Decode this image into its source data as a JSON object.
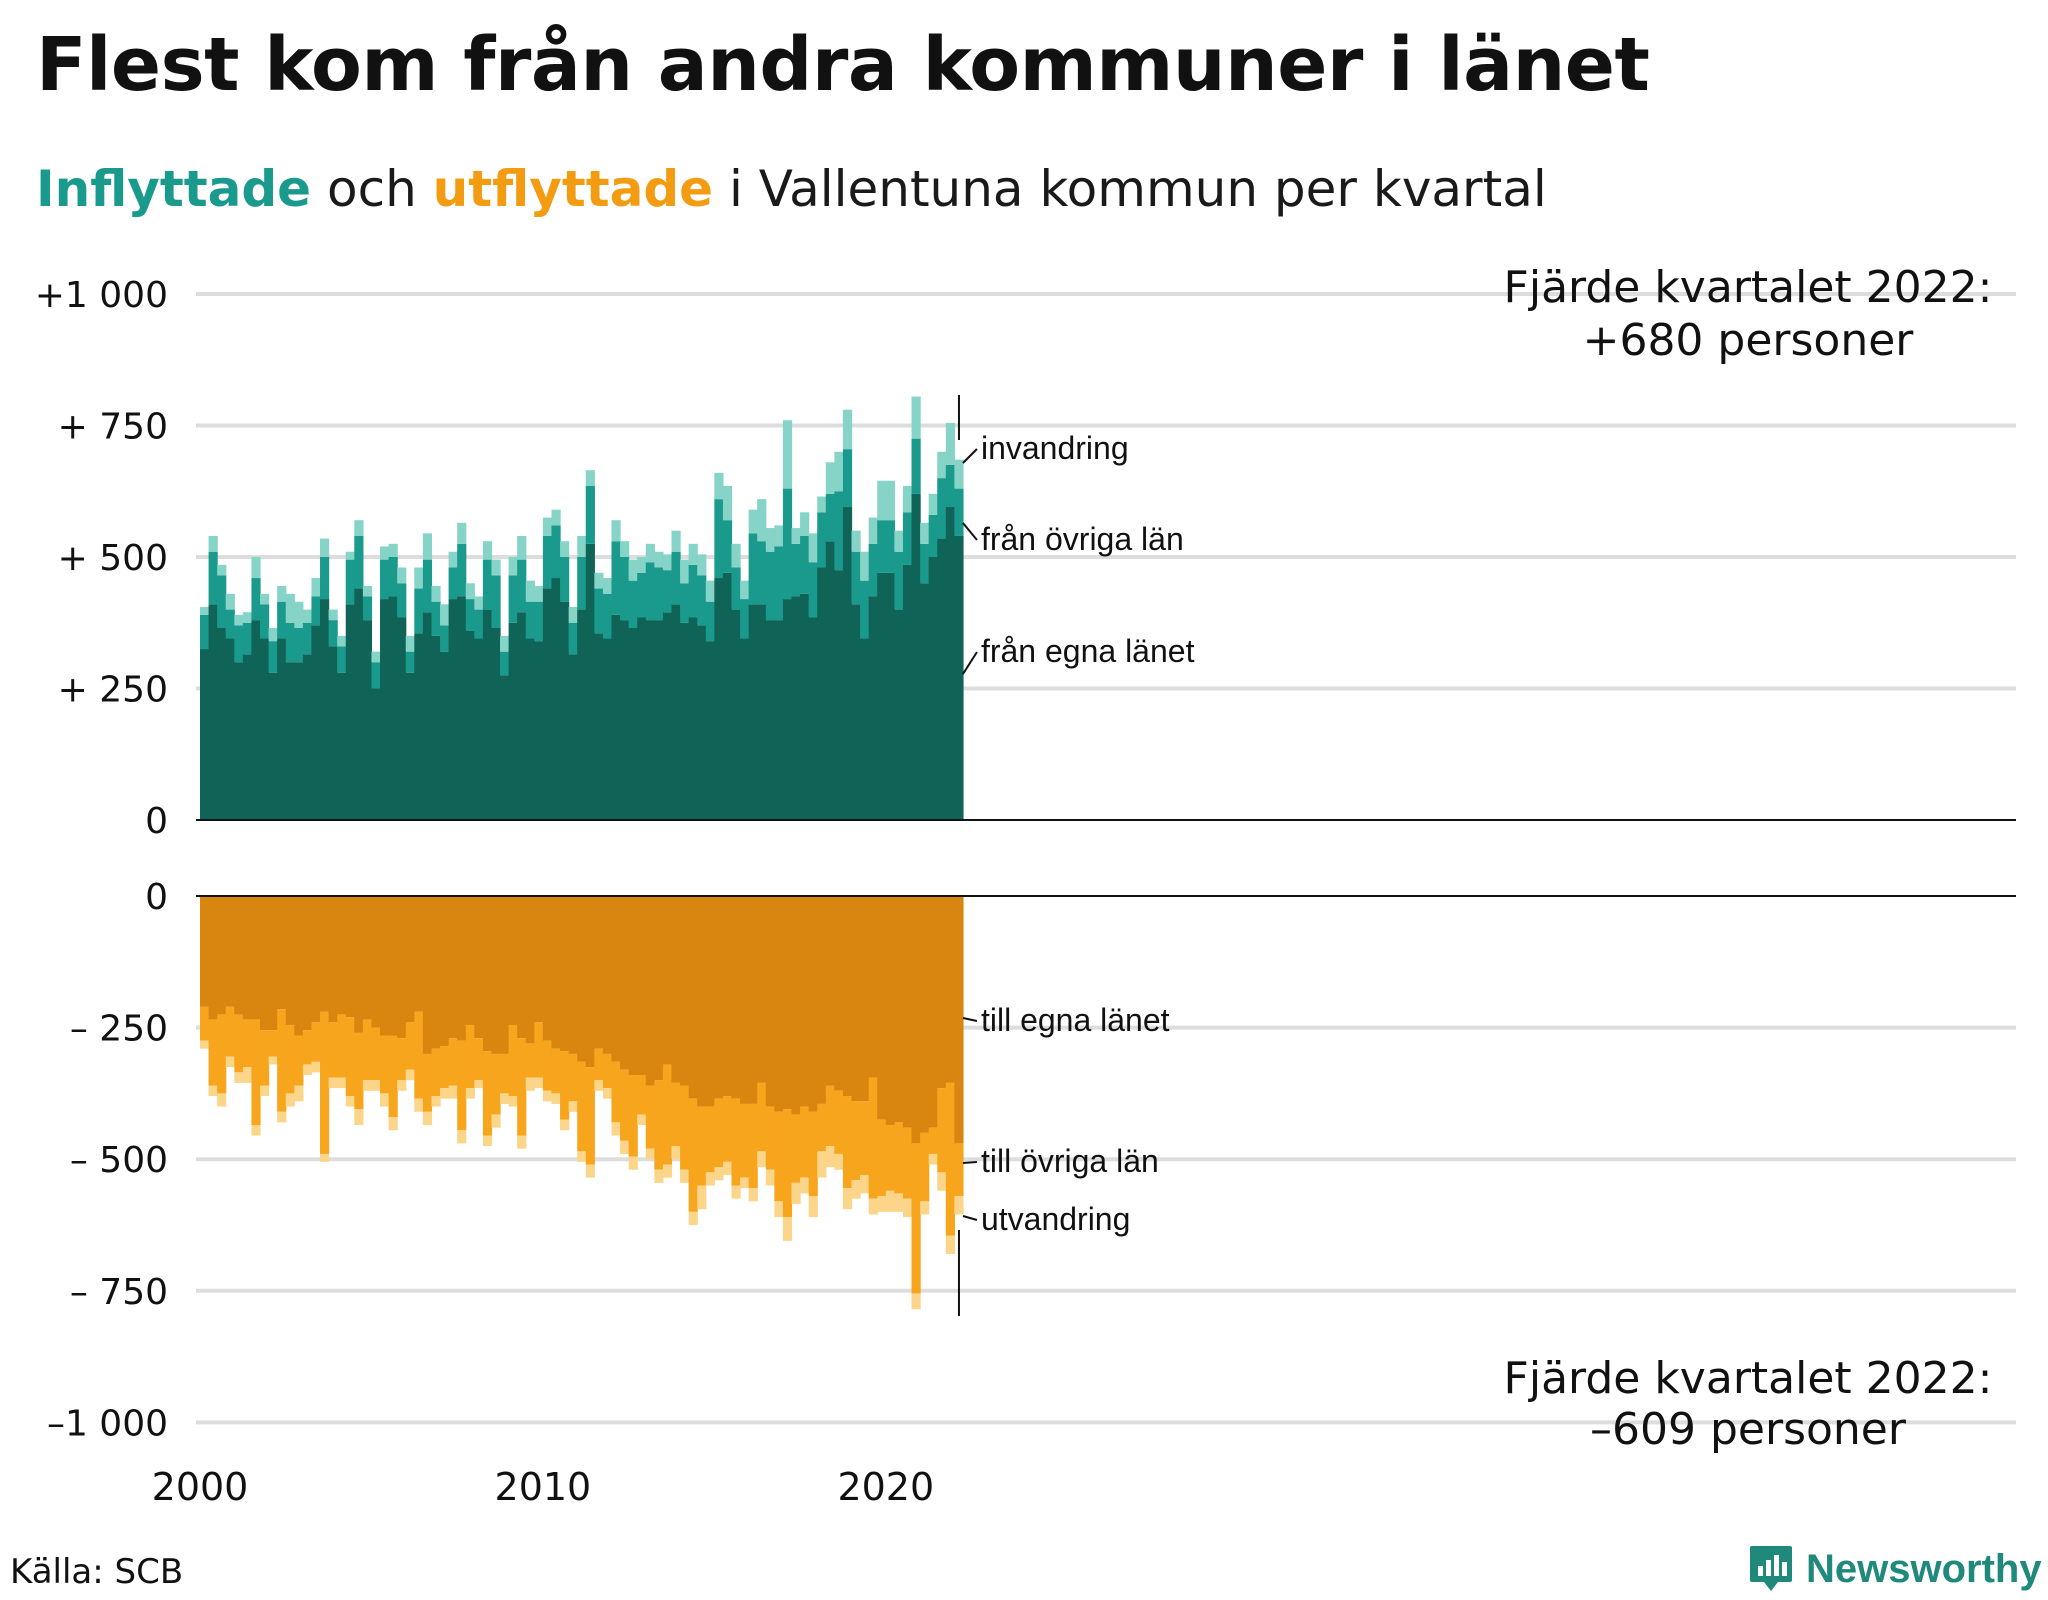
{
  "title": "Flest kom från andra kommuner i länet",
  "subtitle": {
    "word_in": "Inflyttade",
    "middle": " och ",
    "word_out": "utflyttade",
    "rest": " i Vallentuna kommun per kvartal"
  },
  "source": "Källa: SCB",
  "brand": "Newsworthy",
  "colors": {
    "in_own": "#0f6357",
    "in_other": "#1a9a8c",
    "in_immig": "#86d3c7",
    "out_own": "#d8860f",
    "out_other": "#f7a51d",
    "out_emig": "#fbd589",
    "grid": "#dddddd",
    "axis": "#111111"
  },
  "chart_data": {
    "type": "bar",
    "stacked": true,
    "x_unit": "kvartal",
    "x_start": "2000 Q1",
    "x_ticks": [
      "2000",
      "2010",
      "2020"
    ],
    "y_ticks_top": [
      "+1 000",
      "+  750",
      "+  500",
      "+  250",
      "0"
    ],
    "y_ticks_bottom": [
      "0",
      "–  250",
      "–  500",
      "–  750",
      "–1 000"
    ],
    "ylim_top": [
      0,
      1000
    ],
    "ylim_bottom": [
      -1000,
      0
    ],
    "grid": true,
    "series_in": [
      {
        "name": "från egna länet",
        "values": [
          325,
          410,
          365,
          345,
          300,
          315,
          380,
          345,
          280,
          345,
          300,
          300,
          315,
          370,
          420,
          330,
          280,
          410,
          440,
          380,
          250,
          420,
          425,
          385,
          280,
          355,
          395,
          350,
          320,
          420,
          425,
          360,
          345,
          400,
          365,
          275,
          375,
          395,
          345,
          340,
          440,
          460,
          415,
          315,
          400,
          525,
          355,
          345,
          390,
          380,
          365,
          385,
          380,
          380,
          395,
          410,
          375,
          385,
          370,
          340,
          460,
          470,
          400,
          345,
          410,
          410,
          380,
          380,
          420,
          425,
          430,
          385,
          480,
          530,
          475,
          595,
          410,
          345,
          425,
          470,
          470,
          400,
          485,
          620,
          450,
          500,
          535,
          595,
          540
        ]
      },
      {
        "name": "från övriga län",
        "values": [
          65,
          100,
          100,
          55,
          70,
          60,
          80,
          65,
          60,
          70,
          75,
          65,
          60,
          55,
          80,
          50,
          50,
          85,
          100,
          45,
          50,
          75,
          75,
          65,
          40,
          85,
          100,
          65,
          50,
          60,
          100,
          60,
          55,
          95,
          100,
          45,
          90,
          100,
          70,
          75,
          100,
          100,
          85,
          60,
          100,
          110,
          85,
          85,
          140,
          120,
          90,
          85,
          110,
          100,
          80,
          100,
          75,
          100,
          95,
          75,
          150,
          100,
          80,
          75,
          135,
          120,
          130,
          140,
          210,
          100,
          110,
          105,
          105,
          90,
          150,
          110,
          100,
          110,
          100,
          100,
          100,
          110,
          100,
          105,
          75,
          80,
          115,
          80,
          90
        ]
      },
      {
        "name": "invandring",
        "values": [
          15,
          30,
          20,
          30,
          20,
          20,
          40,
          20,
          25,
          30,
          55,
          50,
          25,
          35,
          35,
          20,
          20,
          15,
          30,
          20,
          20,
          25,
          25,
          30,
          30,
          40,
          50,
          30,
          40,
          30,
          40,
          30,
          25,
          35,
          30,
          30,
          35,
          45,
          40,
          30,
          35,
          30,
          30,
          30,
          40,
          30,
          30,
          30,
          40,
          30,
          40,
          30,
          35,
          30,
          30,
          40,
          45,
          40,
          40,
          40,
          50,
          65,
          45,
          35,
          45,
          80,
          45,
          40,
          130,
          30,
          45,
          55,
          30,
          60,
          75,
          75,
          40,
          55,
          50,
          75,
          75,
          40,
          50,
          80,
          40,
          40,
          50,
          80,
          55
        ]
      }
    ],
    "series_out": [
      {
        "name": "till egna länet",
        "values": [
          -210,
          -235,
          -225,
          -210,
          -225,
          -235,
          -235,
          -255,
          -255,
          -215,
          -245,
          -265,
          -255,
          -240,
          -220,
          -240,
          -225,
          -230,
          -260,
          -235,
          -250,
          -265,
          -265,
          -270,
          -240,
          -220,
          -300,
          -290,
          -285,
          -270,
          -275,
          -245,
          -270,
          -295,
          -300,
          -300,
          -245,
          -270,
          -280,
          -240,
          -275,
          -290,
          -295,
          -300,
          -315,
          -325,
          -290,
          -300,
          -315,
          -330,
          -340,
          -340,
          -360,
          -350,
          -320,
          -355,
          -360,
          -385,
          -400,
          -400,
          -385,
          -380,
          -385,
          -395,
          -395,
          -355,
          -400,
          -410,
          -405,
          -415,
          -400,
          -410,
          -395,
          -360,
          -370,
          -380,
          -390,
          -390,
          -345,
          -425,
          -435,
          -430,
          -440,
          -470,
          -450,
          -440,
          -365,
          -355,
          -470
        ]
      },
      {
        "name": "till övriga län",
        "values": [
          -65,
          -125,
          -150,
          -95,
          -110,
          -90,
          -200,
          -105,
          -50,
          -195,
          -130,
          -95,
          -65,
          -75,
          -270,
          -105,
          -120,
          -150,
          -145,
          -115,
          -100,
          -110,
          -155,
          -80,
          -90,
          -165,
          -110,
          -90,
          -80,
          -90,
          -170,
          -120,
          -80,
          -160,
          -115,
          -75,
          -135,
          -185,
          -65,
          -105,
          -95,
          -85,
          -130,
          -90,
          -170,
          -185,
          -60,
          -65,
          -115,
          -135,
          -155,
          -75,
          -120,
          -170,
          -190,
          -120,
          -160,
          -215,
          -150,
          -125,
          -130,
          -125,
          -165,
          -140,
          -160,
          -130,
          -120,
          -170,
          -205,
          -130,
          -135,
          -160,
          -90,
          -115,
          -120,
          -175,
          -150,
          -140,
          -230,
          -145,
          -125,
          -135,
          -135,
          -285,
          -130,
          -50,
          -160,
          -290,
          -100
        ]
      },
      {
        "name": "utvandring",
        "values": [
          -15,
          -20,
          -25,
          -20,
          -20,
          -30,
          -20,
          -20,
          -15,
          -20,
          -25,
          -30,
          -20,
          -20,
          -15,
          -20,
          -20,
          -20,
          -30,
          -20,
          -20,
          -25,
          -25,
          -20,
          -20,
          -25,
          -25,
          -20,
          -20,
          -25,
          -25,
          -20,
          -15,
          -20,
          -25,
          -20,
          -20,
          -25,
          -25,
          -20,
          -20,
          -20,
          -20,
          -20,
          -20,
          -25,
          -20,
          -20,
          -25,
          -25,
          -25,
          -20,
          -20,
          -25,
          -25,
          -25,
          -25,
          -25,
          -45,
          -25,
          -25,
          -25,
          -25,
          -20,
          -25,
          -30,
          -30,
          -30,
          -45,
          -40,
          -30,
          -40,
          -50,
          -40,
          -30,
          -40,
          -35,
          -35,
          -30,
          -30,
          -40,
          -35,
          -35,
          -30,
          -25,
          -20,
          -35,
          -35,
          -35
        ]
      }
    ],
    "annotations": {
      "top_line1": "Fjärde kvartalet 2022:",
      "top_line2": "+680 personer",
      "bottom_line1": "Fjärde kvartalet 2022:",
      "bottom_line2": "–609 personer",
      "label_in_immig": "invandring",
      "label_in_other": "från övriga län",
      "label_in_own": "från egna länet",
      "label_out_own": "till egna länet",
      "label_out_other": "till övriga län",
      "label_out_emig": "utvandring"
    }
  }
}
